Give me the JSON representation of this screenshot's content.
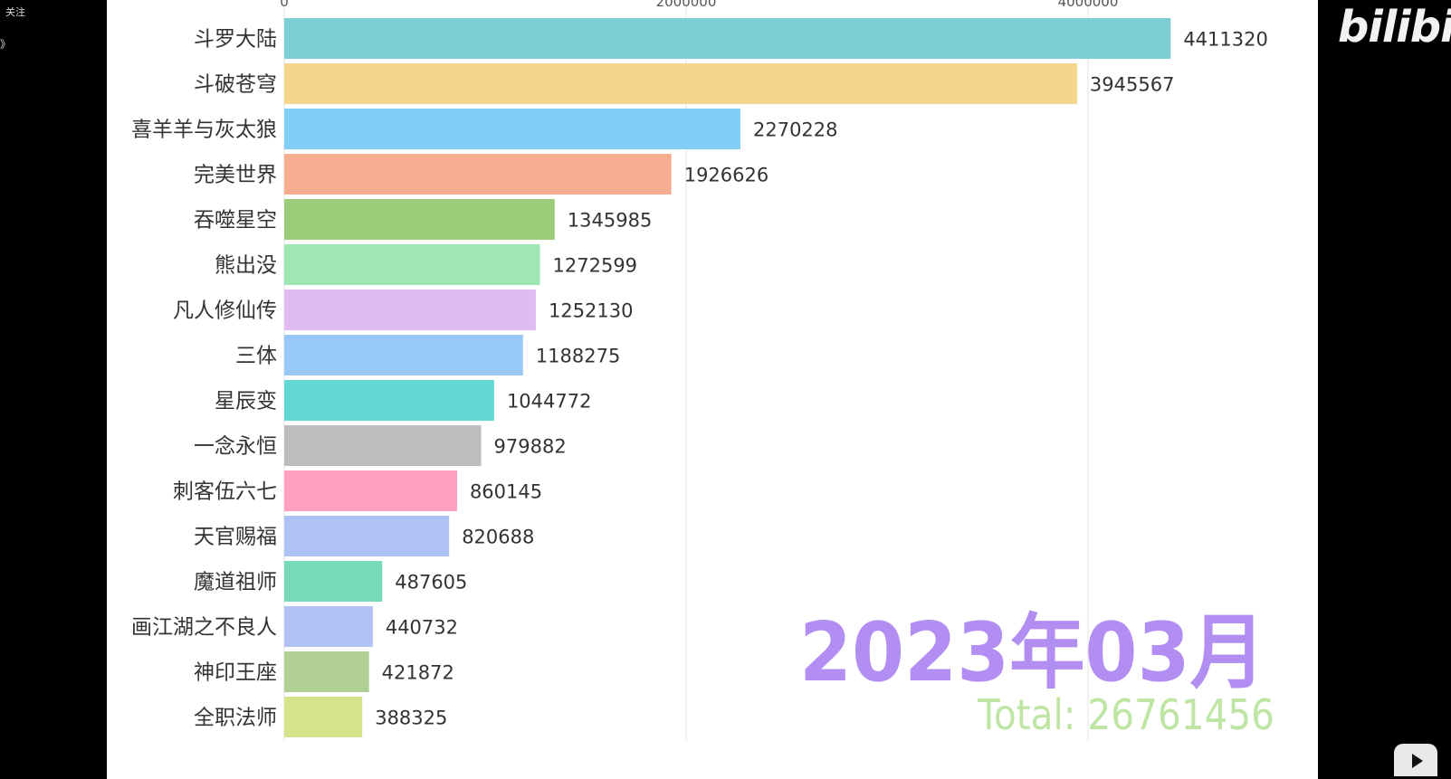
{
  "sidebar": {
    "follow_label": "关注",
    "more_label": "》"
  },
  "watermark": {
    "logo_text": "bilibili",
    "logo_icon": "bilibili-tv-icon"
  },
  "chart_data": {
    "type": "bar",
    "orientation": "horizontal",
    "categories": [
      "斗罗大陆",
      "斗破苍穹",
      "喜羊羊与灰太狼",
      "完美世界",
      "吞噬星空",
      "熊出没",
      "凡人修仙传",
      "三体",
      "星辰变",
      "一念永恒",
      "刺客伍六七",
      "天官赐福",
      "魔道祖师",
      "画江湖之不良人",
      "神印王座",
      "全职法师"
    ],
    "values": [
      4411320,
      3945567,
      2270228,
      1926626,
      1345985,
      1272599,
      1252130,
      1188275,
      1044772,
      979882,
      860145,
      820688,
      487605,
      440732,
      421872,
      388325
    ],
    "value_labels": [
      "4411320",
      "3945567",
      "2270228",
      "1926626",
      "1345985",
      "1272599",
      "1252130",
      "1188275",
      "1044772",
      "979882",
      "860145",
      "820688",
      "487605",
      "440732",
      "421872",
      "388325"
    ],
    "colors": [
      "#7ECFD4",
      "#F5D58C",
      "#82CEF7",
      "#F7AD8F",
      "#9ACC7A",
      "#9EE6B4",
      "#E0BCF2",
      "#97C8F6",
      "#62D8D4",
      "#BDBDBD",
      "#FD9FBD",
      "#AFC2F5",
      "#77D9B9",
      "#B2C2F7",
      "#B0CF94",
      "#D6E28C"
    ],
    "x_ticks": [
      0,
      2000000,
      4000000
    ],
    "x_tick_labels": [
      "0",
      "2000000",
      "4000000"
    ],
    "xlim": [
      0,
      4500000
    ],
    "grid": "vertical",
    "period_label": "2023年03月",
    "total_label": "Total: 26761456",
    "period_color": "#B28DF2",
    "total_color": "#BFE5A4"
  }
}
